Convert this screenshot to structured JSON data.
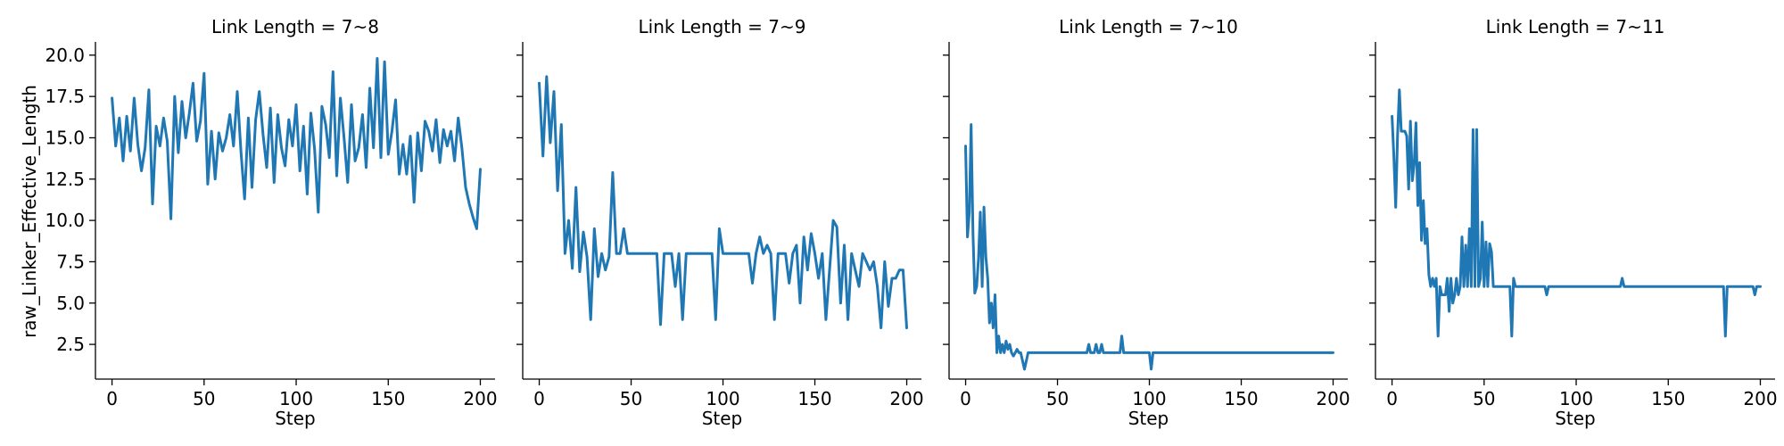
{
  "chart_data": {
    "type": "line",
    "ylabel": "raw_Linker_Effective_Length",
    "xlabel": "Step",
    "xlim": [
      -9,
      208
    ],
    "ylim": [
      0.4,
      20.8
    ],
    "x_ticks": [
      0,
      50,
      100,
      150,
      200
    ],
    "y_ticks": [
      2.5,
      5.0,
      7.5,
      10.0,
      12.5,
      15.0,
      17.5,
      20.0
    ],
    "x_tick_labels": [
      "0",
      "50",
      "100",
      "150",
      "200"
    ],
    "y_tick_labels": [
      "2.5",
      "5.0",
      "7.5",
      "10.0",
      "12.5",
      "15.0",
      "17.5",
      "20.0"
    ],
    "line_color": "#1f77b4",
    "grid": false,
    "shared_y": true,
    "panels": [
      {
        "title": "Link Length = 7~8",
        "x": [
          0,
          2,
          4,
          6,
          8,
          10,
          12,
          14,
          16,
          18,
          20,
          22,
          24,
          26,
          28,
          30,
          32,
          34,
          36,
          38,
          40,
          42,
          44,
          46,
          48,
          50,
          52,
          54,
          56,
          58,
          60,
          62,
          64,
          66,
          68,
          70,
          72,
          74,
          76,
          78,
          80,
          82,
          84,
          86,
          88,
          90,
          92,
          94,
          96,
          98,
          100,
          102,
          104,
          106,
          108,
          110,
          112,
          114,
          116,
          118,
          120,
          122,
          124,
          126,
          128,
          130,
          132,
          134,
          136,
          138,
          140,
          142,
          144,
          146,
          148,
          150,
          152,
          154,
          156,
          158,
          160,
          162,
          164,
          166,
          168,
          170,
          172,
          174,
          176,
          178,
          180,
          182,
          184,
          186,
          188,
          190,
          192,
          194,
          196,
          198,
          200
        ],
        "y": [
          17.4,
          14.5,
          16.2,
          13.6,
          16.3,
          14.2,
          17.4,
          14.6,
          13.0,
          14.4,
          17.9,
          11.0,
          15.7,
          14.5,
          16.2,
          14.8,
          10.1,
          17.5,
          14.1,
          17.2,
          15.0,
          16.5,
          18.3,
          14.8,
          16.0,
          18.9,
          12.2,
          15.4,
          12.5,
          15.3,
          14.2,
          15.0,
          16.4,
          14.5,
          17.8,
          14.2,
          11.3,
          16.2,
          12.0,
          16.1,
          17.8,
          15.2,
          13.2,
          16.8,
          12.3,
          16.4,
          14.4,
          13.3,
          16.1,
          14.5,
          17.0,
          13.0,
          15.7,
          11.6,
          16.5,
          14.3,
          10.5,
          16.9,
          15.8,
          13.8,
          19.0,
          12.7,
          17.4,
          15.0,
          12.3,
          17.0,
          13.6,
          14.4,
          16.4,
          13.2,
          18.0,
          14.4,
          19.8,
          13.8,
          19.6,
          14.0,
          15.4,
          17.3,
          12.8,
          14.6,
          12.8,
          15.1,
          11.1,
          15.3,
          13.0,
          16.0,
          15.4,
          14.2,
          16.1,
          13.5,
          15.5,
          14.5,
          15.4,
          13.6,
          16.2,
          14.4,
          12.0,
          11.0,
          10.2,
          9.5,
          13.1
        ]
      },
      {
        "title": "Link Length = 7~9",
        "x": [
          0,
          2,
          4,
          6,
          8,
          10,
          12,
          14,
          16,
          18,
          20,
          22,
          24,
          26,
          28,
          30,
          32,
          34,
          36,
          38,
          40,
          42,
          44,
          46,
          48,
          50,
          52,
          54,
          56,
          58,
          60,
          62,
          64,
          66,
          68,
          70,
          72,
          74,
          76,
          78,
          80,
          82,
          84,
          86,
          88,
          90,
          92,
          94,
          96,
          98,
          100,
          102,
          104,
          106,
          108,
          110,
          112,
          114,
          116,
          118,
          120,
          122,
          124,
          126,
          128,
          130,
          132,
          134,
          136,
          138,
          140,
          142,
          144,
          146,
          148,
          150,
          152,
          154,
          156,
          158,
          160,
          162,
          164,
          166,
          168,
          170,
          172,
          174,
          176,
          178,
          180,
          182,
          184,
          186,
          188,
          190,
          192,
          194,
          196,
          198,
          200
        ],
        "y": [
          18.3,
          13.9,
          18.7,
          14.7,
          17.8,
          11.8,
          15.8,
          8.0,
          10.0,
          7.1,
          12.0,
          6.9,
          9.3,
          7.8,
          4.0,
          9.5,
          6.6,
          8.0,
          7.0,
          7.8,
          12.9,
          8.0,
          8.0,
          9.5,
          8.0,
          8.0,
          8.0,
          8.0,
          8.0,
          8.0,
          8.0,
          8.0,
          8.0,
          3.7,
          8.0,
          8.0,
          8.0,
          6.0,
          8.0,
          4.0,
          8.0,
          8.0,
          8.0,
          8.0,
          8.0,
          8.0,
          8.0,
          8.0,
          4.0,
          9.5,
          8.0,
          8.0,
          8.0,
          8.0,
          8.0,
          8.0,
          8.0,
          8.0,
          6.2,
          8.0,
          9.0,
          8.0,
          8.5,
          8.0,
          4.0,
          8.0,
          8.0,
          8.0,
          6.2,
          8.0,
          8.5,
          5.0,
          9.0,
          7.0,
          9.2,
          8.0,
          6.5,
          8.0,
          4.0,
          7.0,
          10.0,
          9.6,
          5.0,
          8.5,
          4.0,
          8.0,
          7.0,
          6.0,
          8.0,
          7.5,
          7.0,
          7.5,
          6.0,
          3.5,
          7.5,
          4.8,
          6.5,
          6.5,
          7.0,
          7.0,
          3.5
        ]
      },
      {
        "title": "Link Length = 7~10",
        "x": [
          0,
          1,
          2,
          3,
          4,
          5,
          6,
          7,
          8,
          9,
          10,
          11,
          12,
          13,
          14,
          15,
          16,
          17,
          18,
          19,
          20,
          21,
          22,
          23,
          24,
          25,
          26,
          27,
          28,
          29,
          30,
          32,
          34,
          40,
          50,
          60,
          66,
          67,
          68,
          70,
          71,
          72,
          73,
          74,
          75,
          76,
          80,
          84,
          85,
          86,
          90,
          100,
          101,
          102,
          104,
          110,
          150,
          200
        ],
        "y": [
          14.5,
          9.0,
          10.5,
          15.8,
          9.2,
          5.6,
          6.0,
          7.7,
          10.5,
          6.0,
          10.8,
          7.8,
          6.5,
          3.8,
          5.0,
          3.5,
          5.5,
          2.0,
          3.0,
          2.0,
          2.5,
          2.0,
          2.7,
          2.2,
          2.5,
          2.0,
          1.8,
          2.0,
          2.2,
          2.0,
          2.0,
          1.0,
          2.0,
          2.0,
          2.0,
          2.0,
          2.0,
          2.5,
          2.0,
          2.0,
          2.5,
          2.0,
          2.0,
          2.5,
          2.0,
          2.0,
          2.0,
          2.0,
          3.0,
          2.0,
          2.0,
          2.0,
          1.0,
          2.0,
          2.0,
          2.0,
          2.0,
          2.0
        ]
      },
      {
        "title": "Link Length = 7~11",
        "x": [
          0,
          1,
          2,
          3,
          4,
          5,
          6,
          7,
          8,
          9,
          10,
          11,
          12,
          13,
          14,
          15,
          16,
          17,
          18,
          19,
          20,
          21,
          22,
          23,
          24,
          25,
          26,
          27,
          28,
          29,
          30,
          31,
          32,
          33,
          34,
          35,
          36,
          37,
          38,
          39,
          40,
          41,
          42,
          43,
          44,
          45,
          46,
          47,
          48,
          49,
          50,
          51,
          52,
          53,
          54,
          55,
          56,
          57,
          58,
          60,
          62,
          64,
          65,
          66,
          67,
          68,
          70,
          80,
          83,
          84,
          85,
          86,
          100,
          120,
          124,
          125,
          126,
          130,
          150,
          178,
          180,
          181,
          182,
          190,
          195,
          196,
          197,
          198,
          200
        ],
        "y": [
          16.3,
          13.9,
          10.8,
          15.2,
          17.9,
          15.4,
          15.4,
          15.4,
          15.1,
          11.9,
          16.0,
          12.4,
          13.4,
          15.9,
          10.9,
          13.5,
          8.8,
          11.2,
          8.6,
          9.5,
          6.7,
          6.0,
          6.5,
          6.0,
          6.5,
          3.0,
          6.0,
          5.5,
          5.5,
          5.5,
          6.5,
          4.5,
          6.5,
          5.0,
          5.5,
          6.5,
          5.5,
          6.0,
          9.0,
          6.0,
          8.5,
          6.0,
          9.5,
          6.0,
          15.5,
          6.0,
          15.5,
          6.0,
          6.5,
          9.9,
          6.0,
          8.7,
          6.0,
          8.6,
          8.1,
          6.0,
          6.0,
          6.0,
          6.0,
          6.0,
          6.0,
          6.0,
          3.0,
          6.5,
          6.0,
          6.0,
          6.0,
          6.0,
          6.0,
          5.5,
          6.0,
          6.0,
          6.0,
          6.0,
          6.0,
          6.5,
          6.0,
          6.0,
          6.0,
          6.0,
          6.0,
          3.0,
          6.0,
          6.0,
          6.0,
          6.0,
          5.5,
          6.0,
          6.0
        ]
      }
    ]
  }
}
